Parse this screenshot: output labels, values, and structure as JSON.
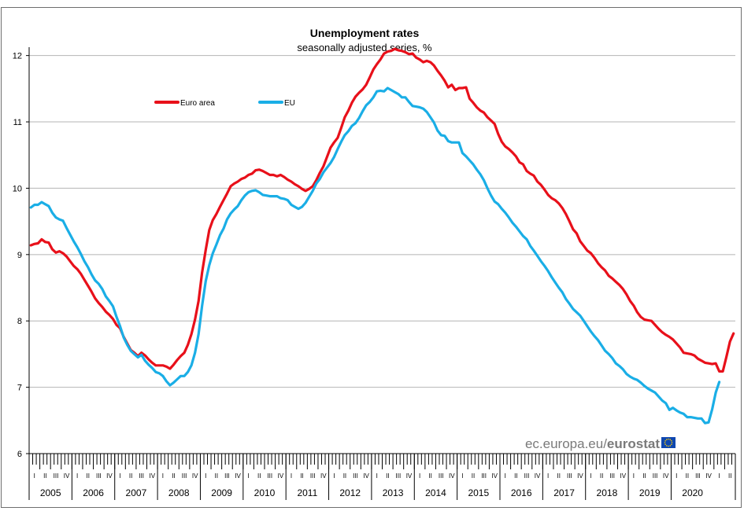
{
  "chart_data": {
    "type": "line",
    "title": "Unemployment rates",
    "subtitle": "seasonally adjusted series, %",
    "xlabel": "",
    "ylabel": "",
    "ylim": [
      6,
      12.6
    ],
    "yticks": [
      6,
      7,
      8,
      9,
      10,
      11,
      12
    ],
    "grid": true,
    "legend_position": "top-left",
    "years": [
      "2005",
      "2006",
      "2007",
      "2008",
      "2009",
      "2010",
      "2011",
      "2012",
      "2013",
      "2014",
      "2015",
      "2016",
      "2017",
      "2018",
      "2019",
      "2020"
    ],
    "quarter_labels": [
      "I",
      "II",
      "III",
      "IV"
    ],
    "x_start": "2005-01",
    "x_end": "2020-06",
    "series": [
      {
        "name": "Euro area",
        "color": "#e8101a",
        "values": [
          9.14,
          9.16,
          9.17,
          9.23,
          9.19,
          9.18,
          9.08,
          9.03,
          9.05,
          9.02,
          8.97,
          8.9,
          8.83,
          8.78,
          8.71,
          8.62,
          8.53,
          8.44,
          8.34,
          8.27,
          8.21,
          8.14,
          8.09,
          8.03,
          7.94,
          7.89,
          7.76,
          7.66,
          7.56,
          7.52,
          7.47,
          7.52,
          7.48,
          7.42,
          7.37,
          7.33,
          7.33,
          7.33,
          7.31,
          7.28,
          7.34,
          7.41,
          7.47,
          7.52,
          7.64,
          7.8,
          8.02,
          8.3,
          8.73,
          9.07,
          9.37,
          9.52,
          9.61,
          9.72,
          9.82,
          9.92,
          10.03,
          10.07,
          10.1,
          10.14,
          10.16,
          10.2,
          10.22,
          10.27,
          10.28,
          10.26,
          10.23,
          10.2,
          10.2,
          10.18,
          10.2,
          10.17,
          10.13,
          10.1,
          10.06,
          10.03,
          9.99,
          9.96,
          9.99,
          10.03,
          10.12,
          10.23,
          10.33,
          10.47,
          10.61,
          10.69,
          10.76,
          10.91,
          11.07,
          11.17,
          11.29,
          11.38,
          11.44,
          11.49,
          11.56,
          11.67,
          11.79,
          11.87,
          11.94,
          12.03,
          12.06,
          12.07,
          12.1,
          12.08,
          12.07,
          12.05,
          12.02,
          12.03,
          11.97,
          11.94,
          11.9,
          11.92,
          11.9,
          11.85,
          11.77,
          11.7,
          11.62,
          11.52,
          11.56,
          11.48,
          11.51,
          11.51,
          11.52,
          11.35,
          11.29,
          11.22,
          11.17,
          11.14,
          11.07,
          11.02,
          10.97,
          10.82,
          10.7,
          10.63,
          10.59,
          10.54,
          10.48,
          10.39,
          10.36,
          10.26,
          10.22,
          10.19,
          10.1,
          10.05,
          9.98,
          9.9,
          9.85,
          9.82,
          9.77,
          9.7,
          9.61,
          9.5,
          9.38,
          9.32,
          9.2,
          9.13,
          9.06,
          9.02,
          8.95,
          8.87,
          8.81,
          8.76,
          8.68,
          8.64,
          8.59,
          8.54,
          8.48,
          8.4,
          8.3,
          8.23,
          8.13,
          8.06,
          8.02,
          8.01,
          8.0,
          7.94,
          7.88,
          7.83,
          7.79,
          7.76,
          7.72,
          7.66,
          7.6,
          7.52,
          7.51,
          7.5,
          7.48,
          7.43,
          7.4,
          7.37,
          7.36,
          7.35,
          7.36,
          7.24,
          7.24,
          7.46,
          7.69,
          7.81
        ]
      },
      {
        "name": "EU",
        "color": "#1aaee6",
        "values": [
          9.71,
          9.75,
          9.75,
          9.79,
          9.76,
          9.73,
          9.63,
          9.56,
          9.53,
          9.51,
          9.4,
          9.3,
          9.2,
          9.11,
          9.01,
          8.9,
          8.81,
          8.7,
          8.61,
          8.56,
          8.48,
          8.37,
          8.3,
          8.22,
          8.06,
          7.92,
          7.75,
          7.64,
          7.55,
          7.5,
          7.45,
          7.49,
          7.4,
          7.34,
          7.29,
          7.23,
          7.21,
          7.17,
          7.09,
          7.03,
          7.07,
          7.12,
          7.17,
          7.17,
          7.23,
          7.33,
          7.52,
          7.8,
          8.23,
          8.6,
          8.84,
          9.02,
          9.15,
          9.29,
          9.39,
          9.53,
          9.62,
          9.68,
          9.73,
          9.82,
          9.89,
          9.94,
          9.96,
          9.97,
          9.94,
          9.9,
          9.89,
          9.88,
          9.88,
          9.88,
          9.85,
          9.84,
          9.82,
          9.75,
          9.72,
          9.69,
          9.72,
          9.78,
          9.87,
          9.96,
          10.07,
          10.14,
          10.24,
          10.31,
          10.38,
          10.47,
          10.59,
          10.7,
          10.8,
          10.86,
          10.94,
          10.98,
          11.06,
          11.16,
          11.25,
          11.3,
          11.37,
          11.46,
          11.47,
          11.46,
          11.51,
          11.48,
          11.45,
          11.42,
          11.37,
          11.37,
          11.3,
          11.24,
          11.23,
          11.22,
          11.2,
          11.15,
          11.07,
          10.99,
          10.87,
          10.8,
          10.79,
          10.71,
          10.69,
          10.69,
          10.69,
          10.53,
          10.48,
          10.42,
          10.36,
          10.28,
          10.21,
          10.12,
          10.0,
          9.89,
          9.8,
          9.76,
          9.69,
          9.63,
          9.56,
          9.48,
          9.42,
          9.35,
          9.28,
          9.23,
          9.13,
          9.06,
          8.98,
          8.9,
          8.83,
          8.75,
          8.66,
          8.58,
          8.5,
          8.43,
          8.33,
          8.26,
          8.18,
          8.13,
          8.08,
          8.0,
          7.92,
          7.84,
          7.77,
          7.71,
          7.63,
          7.55,
          7.5,
          7.44,
          7.36,
          7.32,
          7.27,
          7.2,
          7.16,
          7.13,
          7.11,
          7.07,
          7.02,
          6.98,
          6.95,
          6.92,
          6.86,
          6.8,
          6.76,
          6.66,
          6.69,
          6.65,
          6.62,
          6.6,
          6.55,
          6.55,
          6.54,
          6.53,
          6.53,
          6.46,
          6.47,
          6.67,
          6.92,
          7.08
        ]
      }
    ]
  },
  "source_text_light": "ec.europa.eu/",
  "source_text_bold": "eurostat",
  "colors": {
    "grid": "#b4b4b4",
    "axis": "#000000",
    "frame": "#6e6e6e",
    "eu_flag_blue": "#0f47af",
    "eu_flag_star": "#ffcc00"
  }
}
